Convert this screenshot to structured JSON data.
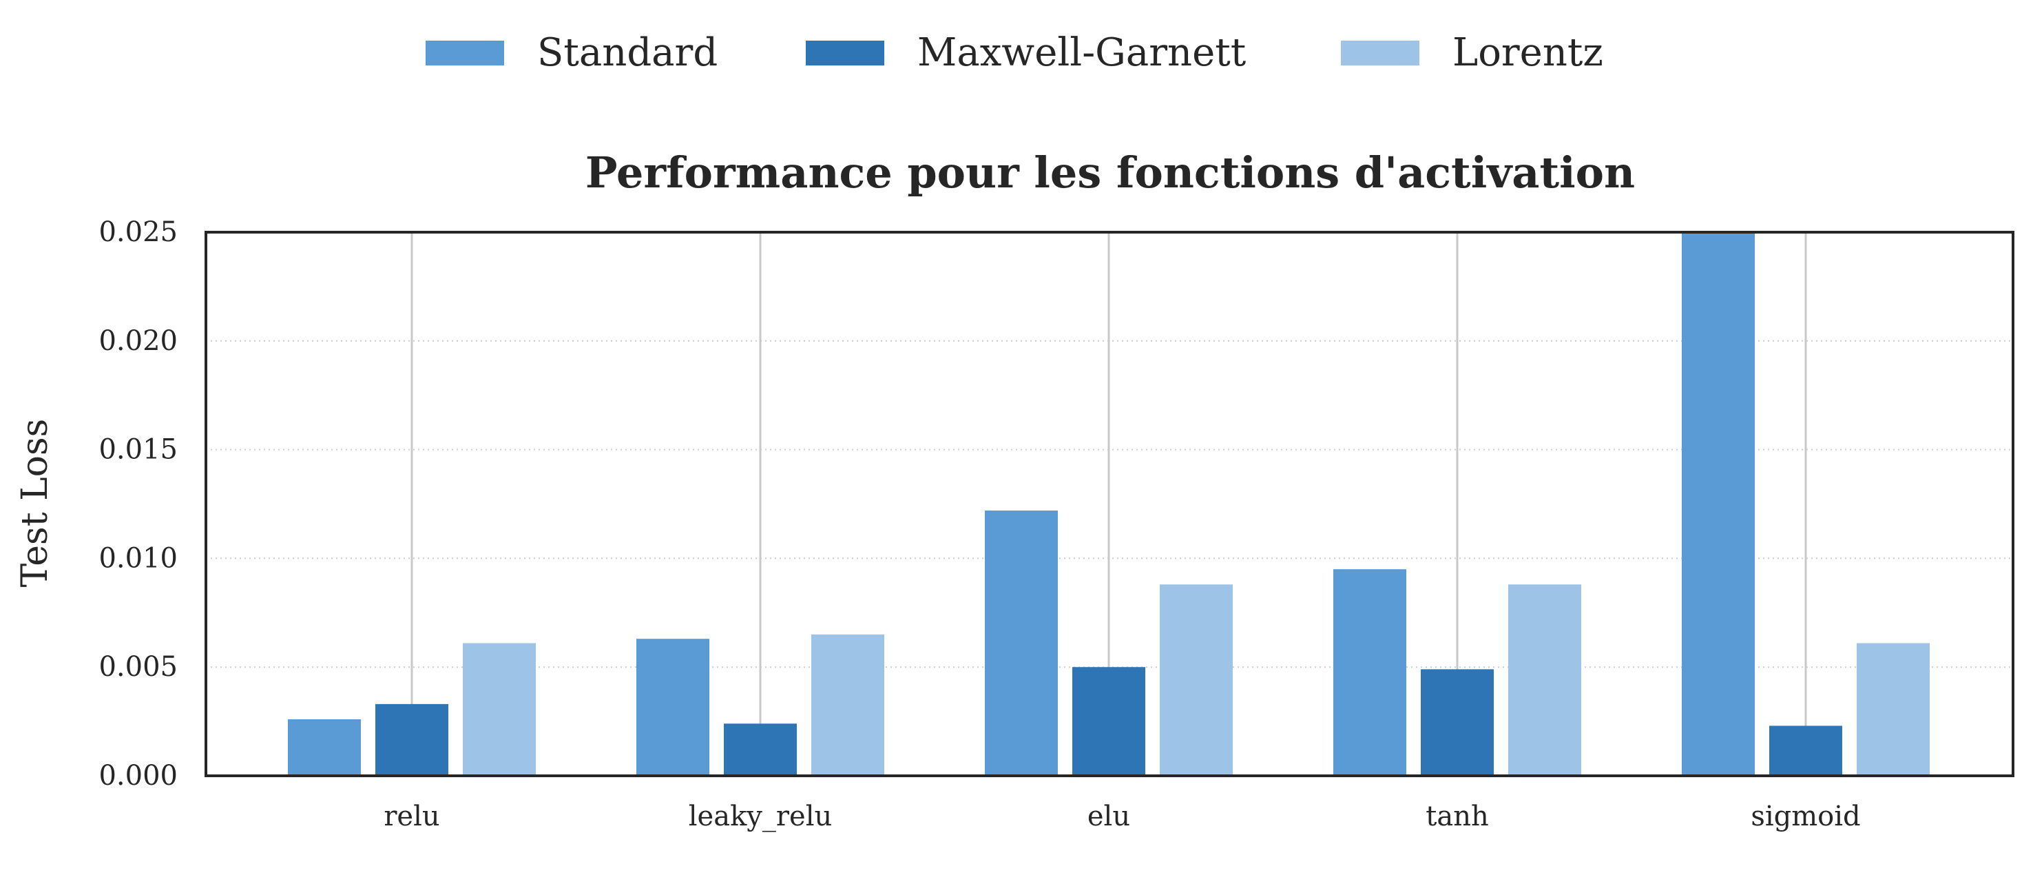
{
  "chart_data": {
    "type": "bar",
    "title": "Performance pour les fonctions d'activation",
    "xlabel": "",
    "ylabel": "Test Loss",
    "categories": [
      "relu",
      "leaky_relu",
      "elu",
      "tanh",
      "sigmoid"
    ],
    "series": [
      {
        "name": "Standard",
        "color": "#5b9bd5",
        "values": [
          0.0026,
          0.0063,
          0.0122,
          0.0095,
          0.025
        ]
      },
      {
        "name": "Maxwell-Garnett",
        "color": "#2e75b6",
        "values": [
          0.0033,
          0.0024,
          0.005,
          0.0049,
          0.0023
        ]
      },
      {
        "name": "Lorentz",
        "color": "#9dc3e6",
        "values": [
          0.0061,
          0.0065,
          0.0088,
          0.0088,
          0.0061
        ]
      }
    ],
    "ylim": [
      0,
      0.025
    ],
    "yticks": [
      "0.000",
      "0.005",
      "0.010",
      "0.015",
      "0.020",
      "0.025"
    ],
    "grid": true,
    "legend_position": "top-center"
  }
}
